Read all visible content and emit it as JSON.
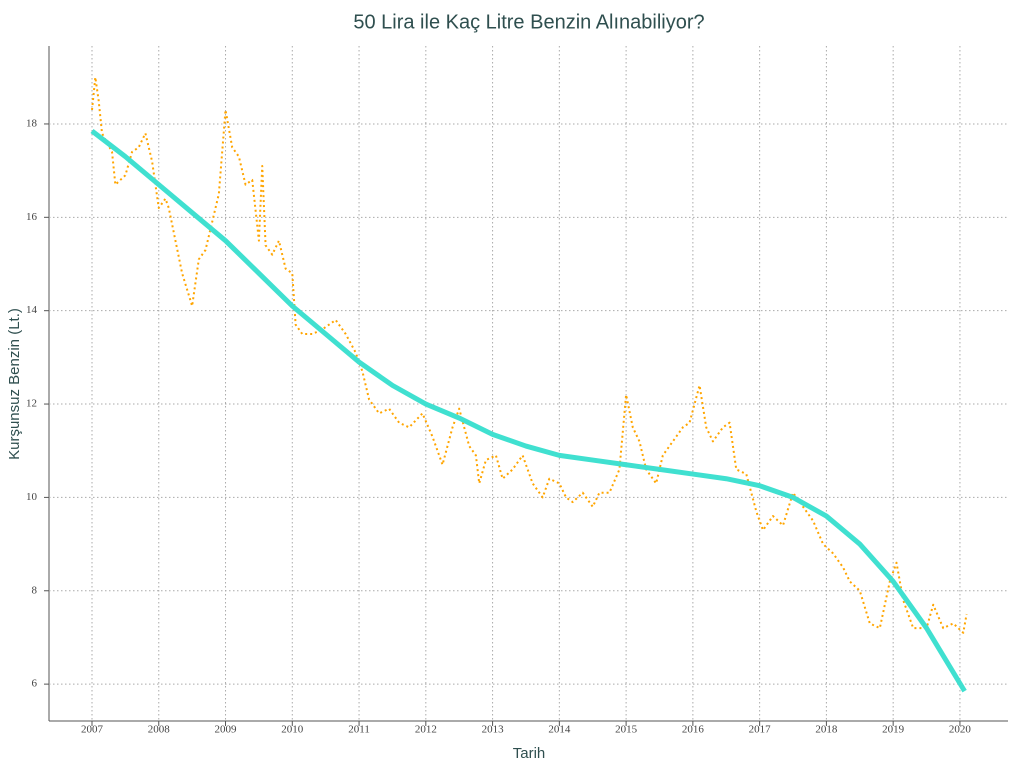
{
  "chart_data": {
    "type": "line",
    "title": "50 Lira ile Kaç Litre Benzin Alınabiliyor?",
    "x_label": "Tarih",
    "y_label": "Kurşunsuz Benzin (Lt.)",
    "xlim": [
      2006.356,
      2020.72
    ],
    "xticks": [
      2007,
      2008,
      2009,
      2010,
      2011,
      2012,
      2013,
      2014,
      2015,
      2016,
      2017,
      2018,
      2019,
      2020
    ],
    "ylim": [
      5.21,
      19.67
    ],
    "yticks": [
      6,
      8,
      10,
      12,
      14,
      16,
      18
    ],
    "grid": true,
    "series": [
      {
        "color": "#ffa500",
        "style": "dotted",
        "x": [
          2007.0,
          2007.05,
          2007.1,
          2007.15,
          2007.3,
          2007.35,
          2007.5,
          2007.6,
          2007.7,
          2007.8,
          2007.9,
          2008.0,
          2008.1,
          2008.15,
          2008.25,
          2008.35,
          2008.5,
          2008.6,
          2008.7,
          2008.8,
          2008.9,
          2009.0,
          2009.1,
          2009.2,
          2009.3,
          2009.4,
          2009.5,
          2009.55,
          2009.6,
          2009.7,
          2009.8,
          2009.9,
          2010.0,
          2010.05,
          2010.15,
          2010.3,
          2010.45,
          2010.65,
          2010.8,
          2010.95,
          2011.05,
          2011.15,
          2011.3,
          2011.45,
          2011.6,
          2011.75,
          2011.95,
          2012.1,
          2012.25,
          2012.4,
          2012.5,
          2012.65,
          2012.75,
          2012.8,
          2012.9,
          2013.05,
          2013.15,
          2013.3,
          2013.45,
          2013.6,
          2013.75,
          2013.85,
          2014.0,
          2014.1,
          2014.2,
          2014.35,
          2014.5,
          2014.6,
          2014.75,
          2014.9,
          2015.0,
          2015.1,
          2015.2,
          2015.3,
          2015.45,
          2015.55,
          2015.7,
          2015.85,
          2015.95,
          2016.1,
          2016.2,
          2016.3,
          2016.45,
          2016.55,
          2016.65,
          2016.8,
          2016.95,
          2017.05,
          2017.2,
          2017.35,
          2017.5,
          2017.65,
          2017.8,
          2017.95,
          2018.1,
          2018.25,
          2018.35,
          2018.5,
          2018.65,
          2018.8,
          2018.95,
          2019.05,
          2019.15,
          2019.3,
          2019.5,
          2019.6,
          2019.75,
          2019.9,
          2020.05,
          2020.1
        ],
        "values": [
          18.3,
          19.0,
          18.5,
          17.8,
          17.4,
          16.7,
          16.9,
          17.4,
          17.5,
          17.8,
          17.2,
          16.2,
          16.4,
          16.2,
          15.5,
          14.8,
          14.1,
          15.1,
          15.3,
          15.9,
          16.5,
          18.3,
          17.5,
          17.3,
          16.7,
          16.8,
          15.5,
          17.1,
          15.4,
          15.2,
          15.5,
          14.9,
          14.8,
          13.7,
          13.5,
          13.5,
          13.6,
          13.8,
          13.5,
          13.1,
          12.7,
          12.1,
          11.8,
          11.9,
          11.6,
          11.5,
          11.8,
          11.3,
          10.7,
          11.5,
          11.9,
          11.1,
          10.9,
          10.3,
          10.8,
          10.9,
          10.4,
          10.6,
          10.9,
          10.3,
          10.0,
          10.4,
          10.3,
          10.0,
          9.9,
          10.1,
          9.8,
          10.1,
          10.1,
          10.6,
          12.2,
          11.5,
          11.2,
          10.6,
          10.3,
          10.9,
          11.2,
          11.5,
          11.6,
          12.4,
          11.5,
          11.2,
          11.5,
          11.6,
          10.6,
          10.5,
          9.7,
          9.3,
          9.6,
          9.4,
          10.1,
          9.8,
          9.5,
          9.0,
          8.8,
          8.5,
          8.2,
          8.0,
          7.3,
          7.2,
          8.2,
          8.6,
          7.8,
          7.2,
          7.2,
          7.7,
          7.2,
          7.3,
          7.1,
          7.5
        ]
      },
      {
        "color": "#40e0d0",
        "style": "solid",
        "x": [
          2007.0,
          2007.5,
          2008.0,
          2008.5,
          2009.0,
          2009.5,
          2010.0,
          2010.5,
          2011.0,
          2011.5,
          2012.0,
          2012.5,
          2013.0,
          2013.5,
          2014.0,
          2014.5,
          2015.0,
          2015.5,
          2016.0,
          2016.5,
          2017.0,
          2017.5,
          2018.0,
          2018.5,
          2019.0,
          2019.5,
          2020.07
        ],
        "values": [
          17.85,
          17.3,
          16.7,
          16.1,
          15.5,
          14.8,
          14.1,
          13.5,
          12.9,
          12.4,
          12.0,
          11.7,
          11.35,
          11.1,
          10.9,
          10.8,
          10.7,
          10.6,
          10.5,
          10.4,
          10.25,
          10.0,
          9.6,
          9.0,
          8.2,
          7.2,
          5.85
        ]
      }
    ]
  }
}
